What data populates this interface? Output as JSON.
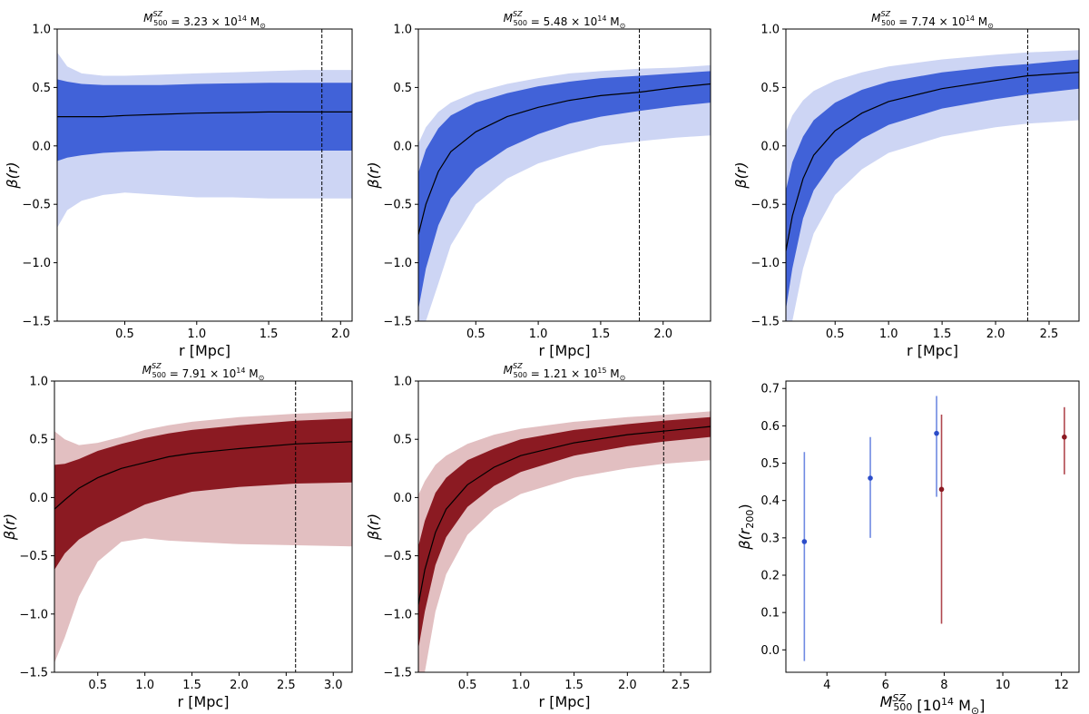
{
  "chart_data": [
    {
      "type": "area",
      "title": "M_500^SZ = 3.23 × 10^14 M_⊙",
      "title_parts": {
        "symbol": "M",
        "superscript": "SZ",
        "subscript": "500",
        "value": " = 3.23 × 10",
        "exponent": "14",
        "unit": " M",
        "unit_sub": "⊙"
      },
      "xlabel": "r [Mpc]",
      "ylabel": "β(r)",
      "xlim": [
        0.03,
        2.08
      ],
      "ylim": [
        -1.5,
        1.0
      ],
      "xticks": [
        0.5,
        1.0,
        1.5,
        2.0
      ],
      "xtick_labels": [
        "0.5",
        "1.0",
        "1.5",
        "2.0"
      ],
      "yticks": [
        -1.5,
        -1.0,
        -0.5,
        0.0,
        0.5,
        1.0
      ],
      "ytick_labels": [
        "−1.5",
        "−1.0",
        "−0.5",
        "0.0",
        "0.5",
        "1.0"
      ],
      "color_inner": "#4162d8",
      "color_outer": "#cdd5f4",
      "vline_x": 1.87,
      "x": [
        0.03,
        0.1,
        0.2,
        0.35,
        0.5,
        0.75,
        1.0,
        1.25,
        1.5,
        1.75,
        2.08
      ],
      "median": [
        0.25,
        0.25,
        0.25,
        0.25,
        0.26,
        0.27,
        0.28,
        0.285,
        0.29,
        0.29,
        0.29
      ],
      "inner_lower": [
        -0.13,
        -0.1,
        -0.08,
        -0.06,
        -0.05,
        -0.04,
        -0.04,
        -0.04,
        -0.04,
        -0.04,
        -0.04
      ],
      "inner_upper": [
        0.57,
        0.55,
        0.53,
        0.52,
        0.52,
        0.52,
        0.53,
        0.535,
        0.54,
        0.54,
        0.54
      ],
      "outer_lower": [
        -0.7,
        -0.55,
        -0.47,
        -0.42,
        -0.4,
        -0.42,
        -0.44,
        -0.44,
        -0.45,
        -0.45,
        -0.45
      ],
      "outer_upper": [
        0.8,
        0.68,
        0.62,
        0.6,
        0.6,
        0.61,
        0.62,
        0.63,
        0.64,
        0.65,
        0.65
      ]
    },
    {
      "type": "area",
      "title": "M_500^SZ = 5.48 × 10^14 M_⊙",
      "title_parts": {
        "symbol": "M",
        "superscript": "SZ",
        "subscript": "500",
        "value": " = 5.48 × 10",
        "exponent": "14",
        "unit": " M",
        "unit_sub": "⊙"
      },
      "xlabel": "r [Mpc]",
      "ylabel": "β(r)",
      "xlim": [
        0.04,
        2.38
      ],
      "ylim": [
        -1.5,
        1.0
      ],
      "xticks": [
        0.5,
        1.0,
        1.5,
        2.0
      ],
      "xtick_labels": [
        "0.5",
        "1.0",
        "1.5",
        "2.0"
      ],
      "yticks": [
        -1.5,
        -1.0,
        -0.5,
        0.0,
        0.5,
        1.0
      ],
      "ytick_labels": [
        "−1.5",
        "−1.0",
        "−0.5",
        "0.0",
        "0.5",
        "1.0"
      ],
      "color_inner": "#4162d8",
      "color_outer": "#cdd5f4",
      "vline_x": 1.81,
      "x": [
        0.04,
        0.1,
        0.2,
        0.3,
        0.5,
        0.75,
        1.0,
        1.25,
        1.5,
        1.81,
        2.1,
        2.38
      ],
      "median": [
        -0.76,
        -0.5,
        -0.22,
        -0.05,
        0.12,
        0.25,
        0.33,
        0.39,
        0.43,
        0.46,
        0.5,
        0.53
      ],
      "inner_lower": [
        -1.4,
        -1.05,
        -0.68,
        -0.45,
        -0.2,
        -0.02,
        0.1,
        0.19,
        0.25,
        0.3,
        0.34,
        0.37
      ],
      "inner_upper": [
        -0.23,
        -0.03,
        0.15,
        0.26,
        0.37,
        0.45,
        0.51,
        0.55,
        0.58,
        0.6,
        0.62,
        0.64
      ],
      "outer_lower": [
        -1.5,
        -1.5,
        -1.18,
        -0.85,
        -0.5,
        -0.28,
        -0.15,
        -0.07,
        0.0,
        0.04,
        0.07,
        0.09
      ],
      "outer_upper": [
        0.02,
        0.16,
        0.29,
        0.37,
        0.46,
        0.53,
        0.58,
        0.62,
        0.64,
        0.66,
        0.67,
        0.69
      ]
    },
    {
      "type": "area",
      "title": "M_500^SZ = 7.74 × 10^14 M_⊙",
      "title_parts": {
        "symbol": "M",
        "superscript": "SZ",
        "subscript": "500",
        "value": " = 7.74 × 10",
        "exponent": "14",
        "unit": " M",
        "unit_sub": "⊙"
      },
      "xlabel": "r [Mpc]",
      "ylabel": "β(r)",
      "xlim": [
        0.04,
        2.78
      ],
      "ylim": [
        -1.5,
        1.0
      ],
      "xticks": [
        0.5,
        1.0,
        1.5,
        2.0,
        2.5
      ],
      "xtick_labels": [
        "0.5",
        "1.0",
        "1.5",
        "2.0",
        "2.5"
      ],
      "yticks": [
        -1.5,
        -1.0,
        -0.5,
        0.0,
        0.5,
        1.0
      ],
      "ytick_labels": [
        "−1.5",
        "−1.0",
        "−0.5",
        "0.0",
        "0.5",
        "1.0"
      ],
      "color_inner": "#4162d8",
      "color_outer": "#cdd5f4",
      "vline_x": 2.3,
      "x": [
        0.04,
        0.1,
        0.2,
        0.3,
        0.5,
        0.75,
        1.0,
        1.5,
        2.0,
        2.3,
        2.78
      ],
      "median": [
        -0.9,
        -0.6,
        -0.28,
        -0.08,
        0.13,
        0.28,
        0.38,
        0.49,
        0.56,
        0.6,
        0.63
      ],
      "inner_lower": [
        -1.4,
        -1.05,
        -0.62,
        -0.38,
        -0.12,
        0.06,
        0.18,
        0.32,
        0.4,
        0.44,
        0.49
      ],
      "inner_upper": [
        -0.38,
        -0.14,
        0.08,
        0.22,
        0.37,
        0.48,
        0.55,
        0.63,
        0.68,
        0.7,
        0.74
      ],
      "outer_lower": [
        -1.5,
        -1.5,
        -1.05,
        -0.75,
        -0.42,
        -0.2,
        -0.06,
        0.08,
        0.16,
        0.19,
        0.22
      ],
      "outer_upper": [
        0.12,
        0.26,
        0.39,
        0.47,
        0.56,
        0.63,
        0.68,
        0.74,
        0.78,
        0.8,
        0.82
      ]
    },
    {
      "type": "area",
      "title": "M_500^SZ = 7.91 × 10^14 M_⊙",
      "title_parts": {
        "symbol": "M",
        "superscript": "SZ",
        "subscript": "500",
        "value": " = 7.91 × 10",
        "exponent": "14",
        "unit": " M",
        "unit_sub": "⊙"
      },
      "xlabel": "r [Mpc]",
      "ylabel": "β(r)",
      "xlim": [
        0.04,
        3.2
      ],
      "ylim": [
        -1.5,
        1.0
      ],
      "xticks": [
        0.5,
        1.0,
        1.5,
        2.0,
        2.5,
        3.0
      ],
      "xtick_labels": [
        "0.5",
        "1.0",
        "1.5",
        "2.0",
        "2.5",
        "3.0"
      ],
      "yticks": [
        -1.5,
        -1.0,
        -0.5,
        0.0,
        0.5,
        1.0
      ],
      "ytick_labels": [
        "−1.5",
        "−1.0",
        "−0.5",
        "0.0",
        "0.5",
        "1.0"
      ],
      "color_inner": "#8b1a22",
      "color_outer": "#e2bfc1",
      "vline_x": 2.6,
      "x": [
        0.04,
        0.15,
        0.3,
        0.5,
        0.75,
        1.0,
        1.25,
        1.5,
        2.0,
        2.6,
        3.2
      ],
      "median": [
        -0.1,
        -0.02,
        0.08,
        0.17,
        0.25,
        0.3,
        0.35,
        0.38,
        0.42,
        0.46,
        0.48
      ],
      "inner_lower": [
        -0.62,
        -0.48,
        -0.36,
        -0.26,
        -0.16,
        -0.06,
        0.0,
        0.05,
        0.09,
        0.12,
        0.13
      ],
      "inner_upper": [
        0.28,
        0.29,
        0.33,
        0.4,
        0.46,
        0.51,
        0.55,
        0.58,
        0.62,
        0.66,
        0.68
      ],
      "outer_lower": [
        -1.42,
        -1.2,
        -0.85,
        -0.55,
        -0.38,
        -0.35,
        -0.37,
        -0.38,
        -0.4,
        -0.41,
        -0.42
      ],
      "outer_upper": [
        0.57,
        0.5,
        0.45,
        0.47,
        0.52,
        0.58,
        0.62,
        0.65,
        0.69,
        0.72,
        0.74
      ]
    },
    {
      "type": "area",
      "title": "M_500^SZ = 1.21 × 10^15 M_⊙",
      "title_parts": {
        "symbol": "M",
        "superscript": "SZ",
        "subscript": "500",
        "value": " = 1.21 × 10",
        "exponent": "15",
        "unit": " M",
        "unit_sub": "⊙"
      },
      "xlabel": "r [Mpc]",
      "ylabel": "β(r)",
      "xlim": [
        0.04,
        2.78
      ],
      "ylim": [
        -1.5,
        1.0
      ],
      "xticks": [
        0.5,
        1.0,
        1.5,
        2.0,
        2.5
      ],
      "xtick_labels": [
        "0.5",
        "1.0",
        "1.5",
        "2.0",
        "2.5"
      ],
      "yticks": [
        -1.5,
        -1.0,
        -0.5,
        0.0,
        0.5,
        1.0
      ],
      "ytick_labels": [
        "−1.5",
        "−1.0",
        "−0.5",
        "0.0",
        "0.5",
        "1.0"
      ],
      "color_inner": "#8b1a22",
      "color_outer": "#e2bfc1",
      "vline_x": 2.34,
      "x": [
        0.04,
        0.1,
        0.2,
        0.3,
        0.5,
        0.75,
        1.0,
        1.5,
        2.0,
        2.34,
        2.78
      ],
      "median": [
        -0.92,
        -0.62,
        -0.3,
        -0.1,
        0.11,
        0.26,
        0.36,
        0.47,
        0.54,
        0.57,
        0.61
      ],
      "inner_lower": [
        -1.3,
        -0.98,
        -0.58,
        -0.34,
        -0.08,
        0.1,
        0.22,
        0.36,
        0.44,
        0.48,
        0.52
      ],
      "inner_upper": [
        -0.42,
        -0.2,
        0.04,
        0.17,
        0.32,
        0.42,
        0.5,
        0.58,
        0.63,
        0.66,
        0.69
      ],
      "outer_lower": [
        -1.5,
        -1.5,
        -0.98,
        -0.66,
        -0.32,
        -0.1,
        0.03,
        0.17,
        0.25,
        0.29,
        0.32
      ],
      "outer_upper": [
        0.02,
        0.14,
        0.28,
        0.36,
        0.46,
        0.54,
        0.59,
        0.65,
        0.69,
        0.71,
        0.74
      ]
    },
    {
      "type": "scatter",
      "title": "",
      "xlabel": "M_500^SZ [10^14 M_⊙]",
      "xlabel_parts": {
        "symbol": "M",
        "superscript": "SZ",
        "subscript": "500",
        "text": " [10",
        "exponent": "14",
        "unit": " M",
        "unit_sub": "⊙",
        "close": "]"
      },
      "ylabel": "β(r_200)",
      "ylabel_parts": {
        "text": "β(r",
        "subscript": "200",
        "close": ")"
      },
      "xlim": [
        2.6,
        12.6
      ],
      "ylim": [
        -0.06,
        0.72
      ],
      "xticks": [
        4,
        6,
        8,
        10,
        12
      ],
      "xtick_labels": [
        "4",
        "6",
        "8",
        "10",
        "12"
      ],
      "yticks": [
        0.0,
        0.1,
        0.2,
        0.3,
        0.4,
        0.5,
        0.6,
        0.7
      ],
      "ytick_labels": [
        "0.0",
        "0.1",
        "0.2",
        "0.3",
        "0.4",
        "0.5",
        "0.6",
        "0.7"
      ],
      "points": [
        {
          "x": 3.23,
          "y": 0.29,
          "ylow": -0.03,
          "yhigh": 0.53,
          "color": "#2c4dc9",
          "bar_color": "#6f8ae2"
        },
        {
          "x": 5.48,
          "y": 0.46,
          "ylow": 0.3,
          "yhigh": 0.57,
          "color": "#2c4dc9",
          "bar_color": "#6f8ae2"
        },
        {
          "x": 7.74,
          "y": 0.58,
          "ylow": 0.41,
          "yhigh": 0.68,
          "color": "#2c4dc9",
          "bar_color": "#6f8ae2"
        },
        {
          "x": 7.91,
          "y": 0.43,
          "ylow": 0.07,
          "yhigh": 0.63,
          "color": "#8b1a22",
          "bar_color": "#b0474e"
        },
        {
          "x": 12.1,
          "y": 0.57,
          "ylow": 0.47,
          "yhigh": 0.65,
          "color": "#8b1a22",
          "bar_color": "#b0474e"
        }
      ]
    }
  ]
}
